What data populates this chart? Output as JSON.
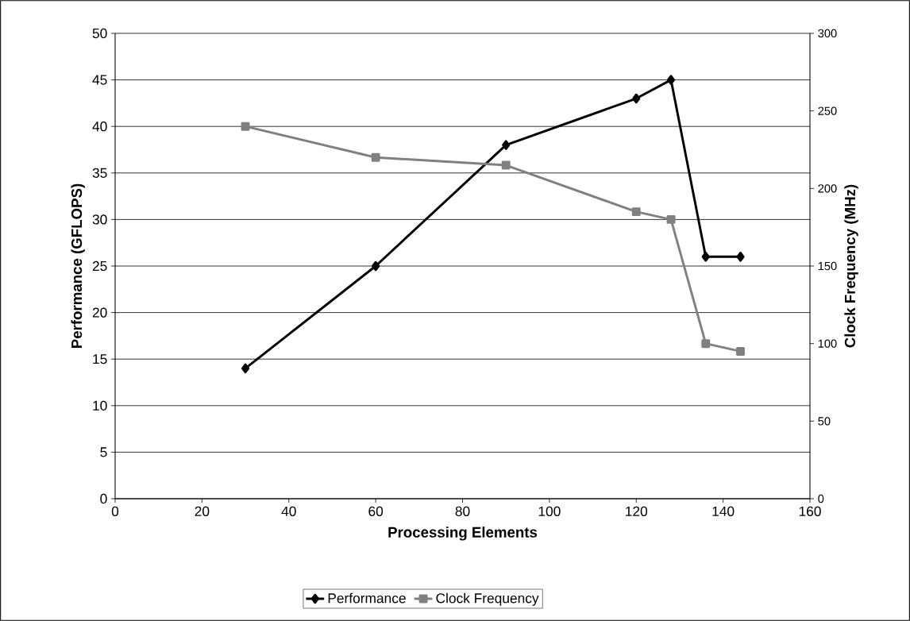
{
  "chart_data": {
    "type": "line",
    "xlabel": "Processing Elements",
    "ylabel": "Performance (GFLOPS)",
    "y2label": "Clock Frequency (MHz)",
    "x": [
      30,
      60,
      90,
      120,
      128,
      136,
      144
    ],
    "series": [
      {
        "name": "Performance",
        "color": "#000000",
        "marker": "diamond",
        "values": [
          14,
          25,
          38,
          43,
          45,
          26,
          26
        ]
      },
      {
        "name": "Clock Frequency",
        "color": "#808080",
        "marker": "square",
        "axis": "y2",
        "values": [
          240,
          220,
          215,
          185,
          180,
          100,
          95
        ]
      }
    ],
    "xlim": [
      0,
      160
    ],
    "xticks": [
      0,
      20,
      40,
      60,
      80,
      100,
      120,
      140,
      160
    ],
    "ylim": [
      0,
      50
    ],
    "yticks": [
      0,
      5,
      10,
      15,
      20,
      25,
      30,
      35,
      40,
      45,
      50
    ],
    "y2lim": [
      0,
      300
    ],
    "y2ticks": [
      0,
      50,
      100,
      150,
      200,
      250,
      300
    ],
    "grid": "y",
    "legend": "bottom"
  }
}
